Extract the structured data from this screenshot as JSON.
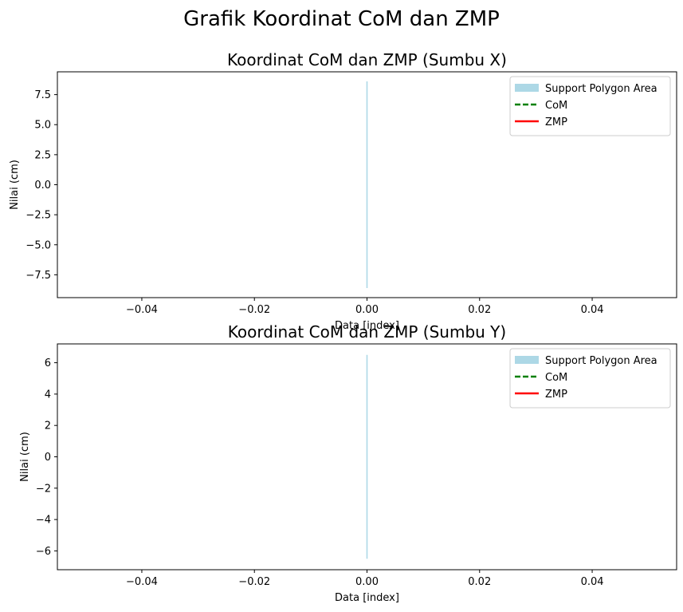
{
  "figure": {
    "suptitle": "Grafik Koordinat CoM dan ZMP"
  },
  "colors": {
    "support_polygon": "#add8e6",
    "com": "#008000",
    "zmp": "#ff0000",
    "axes": "#000000",
    "background": "#ffffff"
  },
  "chart_data": [
    {
      "type": "line",
      "title": "Koordinat CoM dan ZMP (Sumbu X)",
      "xlabel": "Data [index]",
      "ylabel": "Nilai (cm)",
      "xlim": [
        -0.055,
        0.055
      ],
      "ylim": [
        -9.4,
        9.4
      ],
      "xticks": [
        -0.04,
        -0.02,
        0.0,
        0.02,
        0.04
      ],
      "xtick_labels": [
        "−0.04",
        "−0.02",
        "0.00",
        "0.02",
        "0.04"
      ],
      "yticks": [
        -7.5,
        -5.0,
        -2.5,
        0.0,
        2.5,
        5.0,
        7.5
      ],
      "ytick_labels": [
        "−7.5",
        "−5.0",
        "−2.5",
        "0.0",
        "2.5",
        "5.0",
        "7.5"
      ],
      "grid": false,
      "legend_position": "upper right",
      "series": [
        {
          "name": "Support Polygon Area",
          "kind": "fill",
          "x": [
            0
          ],
          "y_low": [
            -8.6
          ],
          "y_high": [
            8.6
          ]
        },
        {
          "name": "CoM",
          "kind": "line",
          "style": "dashed",
          "x": [
            0
          ],
          "y": [
            0
          ]
        },
        {
          "name": "ZMP",
          "kind": "line",
          "style": "solid",
          "x": [
            0
          ],
          "y": [
            0
          ]
        }
      ]
    },
    {
      "type": "line",
      "title": "Koordinat CoM dan ZMP (Sumbu Y)",
      "xlabel": "Data [index]",
      "ylabel": "Nilai (cm)",
      "xlim": [
        -0.055,
        0.055
      ],
      "ylim": [
        -7.2,
        7.2
      ],
      "xticks": [
        -0.04,
        -0.02,
        0.0,
        0.02,
        0.04
      ],
      "xtick_labels": [
        "−0.04",
        "−0.02",
        "0.00",
        "0.02",
        "0.04"
      ],
      "yticks": [
        -6,
        -4,
        -2,
        0,
        2,
        4,
        6
      ],
      "ytick_labels": [
        "−6",
        "−4",
        "−2",
        "0",
        "2",
        "4",
        "6"
      ],
      "grid": false,
      "legend_position": "upper right",
      "series": [
        {
          "name": "Support Polygon Area",
          "kind": "fill",
          "x": [
            0
          ],
          "y_low": [
            -6.5
          ],
          "y_high": [
            6.5
          ]
        },
        {
          "name": "CoM",
          "kind": "line",
          "style": "dashed",
          "x": [
            0
          ],
          "y": [
            0
          ]
        },
        {
          "name": "ZMP",
          "kind": "line",
          "style": "solid",
          "x": [
            0
          ],
          "y": [
            0
          ]
        }
      ]
    }
  ]
}
